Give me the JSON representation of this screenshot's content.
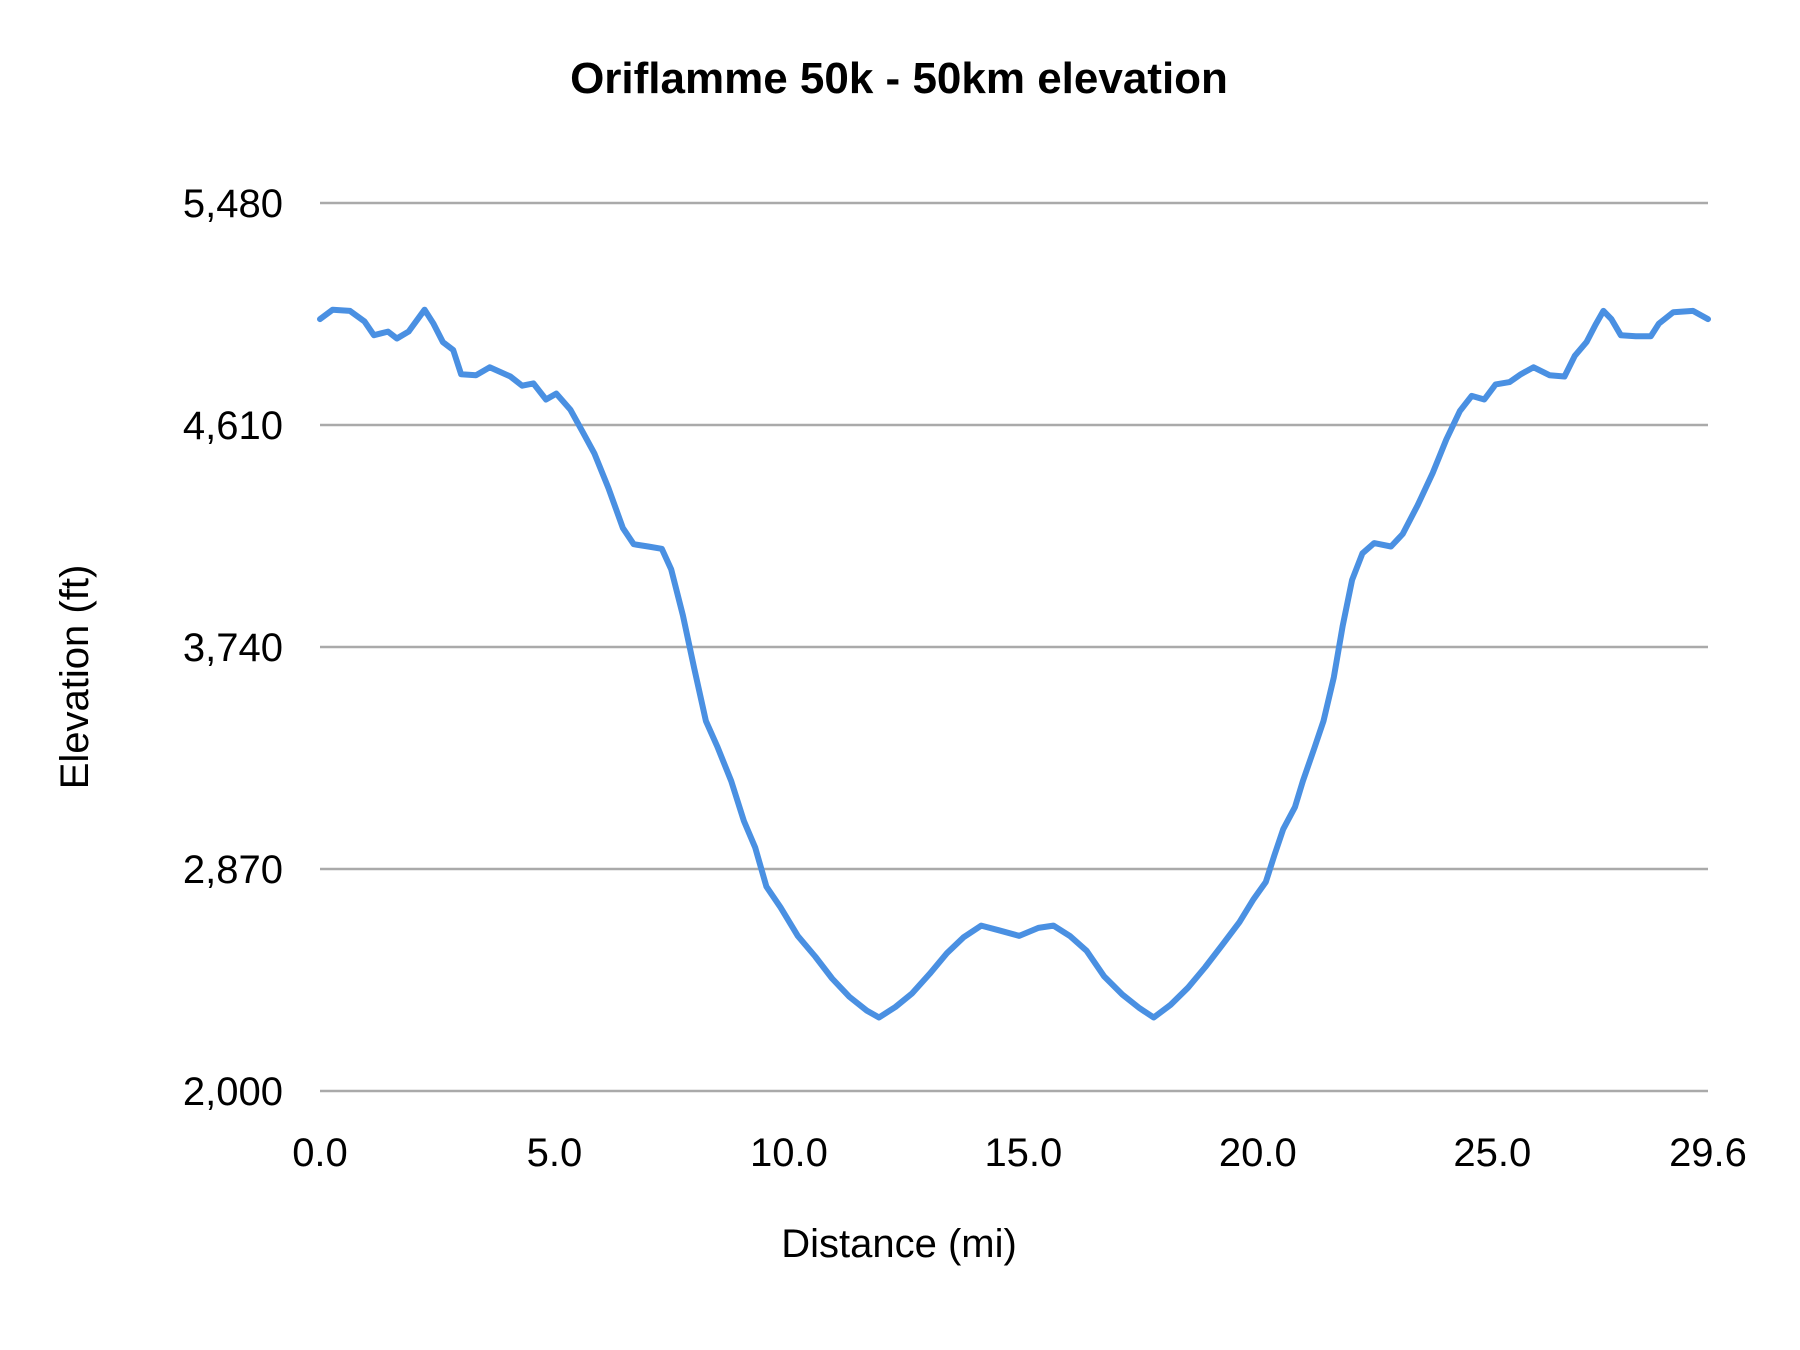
{
  "chart_data": {
    "type": "line",
    "title": "Oriflamme 50k - 50km elevation",
    "xlabel": "Distance (mi)",
    "ylabel": "Elevation (ft)",
    "xlim": [
      0,
      29.6
    ],
    "ylim": [
      2000,
      5480
    ],
    "xticks": [
      "0.0",
      "5.0",
      "10.0",
      "15.0",
      "20.0",
      "25.0",
      "29.6"
    ],
    "xtick_values": [
      0,
      5,
      10,
      15,
      20,
      25,
      29.6
    ],
    "yticks": [
      "2,000",
      "2,870",
      "3,740",
      "4,610",
      "5,480"
    ],
    "ytick_values": [
      2000,
      2870,
      3740,
      4610,
      5480
    ],
    "grid": "horizontal",
    "legend": "none",
    "line_color": "#4a90e2",
    "grid_color": "#aaaaaa",
    "x": [
      0,
      0.27,
      0.64,
      0.95,
      1.15,
      1.45,
      1.64,
      1.89,
      2.23,
      2.42,
      2.62,
      2.84,
      3.01,
      3.33,
      3.62,
      4.06,
      4.31,
      4.55,
      4.82,
      5.04,
      5.34,
      5.61,
      5.85,
      6.15,
      6.46,
      6.69,
      7.0,
      7.29,
      7.49,
      7.74,
      7.98,
      8.23,
      8.47,
      8.77,
      9.04,
      9.28,
      9.52,
      9.82,
      10.19,
      10.56,
      10.92,
      11.29,
      11.66,
      11.92,
      12.27,
      12.63,
      13.0,
      13.37,
      13.73,
      14.1,
      14.47,
      14.91,
      15.32,
      15.64,
      15.99,
      16.35,
      16.72,
      17.11,
      17.48,
      17.78,
      18.14,
      18.51,
      18.88,
      19.24,
      19.61,
      19.91,
      20.17,
      20.35,
      20.54,
      20.79,
      20.96,
      21.2,
      21.4,
      21.62,
      21.81,
      22.01,
      22.23,
      22.48,
      22.84,
      23.09,
      23.41,
      23.73,
      24.02,
      24.31,
      24.56,
      24.83,
      25.07,
      25.37,
      25.61,
      25.88,
      26.22,
      26.54,
      26.76,
      27.01,
      27.2,
      27.37,
      27.54,
      27.74,
      28.06,
      28.38,
      28.55,
      28.86,
      29.28,
      29.6
    ],
    "y": [
      5025,
      5062,
      5057,
      5016,
      4962,
      4976,
      4949,
      4976,
      5062,
      5007,
      4935,
      4904,
      4809,
      4805,
      4836,
      4800,
      4764,
      4773,
      4710,
      4733,
      4670,
      4580,
      4499,
      4363,
      4206,
      4143,
      4134,
      4125,
      4044,
      3864,
      3657,
      3450,
      3351,
      3215,
      3058,
      2954,
      2801,
      2720,
      2608,
      2527,
      2441,
      2369,
      2315,
      2288,
      2329,
      2383,
      2459,
      2540,
      2603,
      2648,
      2630,
      2608,
      2639,
      2648,
      2608,
      2549,
      2450,
      2378,
      2324,
      2288,
      2338,
      2405,
      2486,
      2572,
      2662,
      2752,
      2819,
      2923,
      3026,
      3112,
      3215,
      3341,
      3450,
      3621,
      3823,
      4003,
      4107,
      4147,
      4134,
      4183,
      4296,
      4422,
      4553,
      4665,
      4724,
      4710,
      4769,
      4778,
      4809,
      4836,
      4805,
      4800,
      4881,
      4935,
      5003,
      5057,
      5025,
      4962,
      4958,
      4958,
      5007,
      5052,
      5057,
      5025
    ]
  }
}
